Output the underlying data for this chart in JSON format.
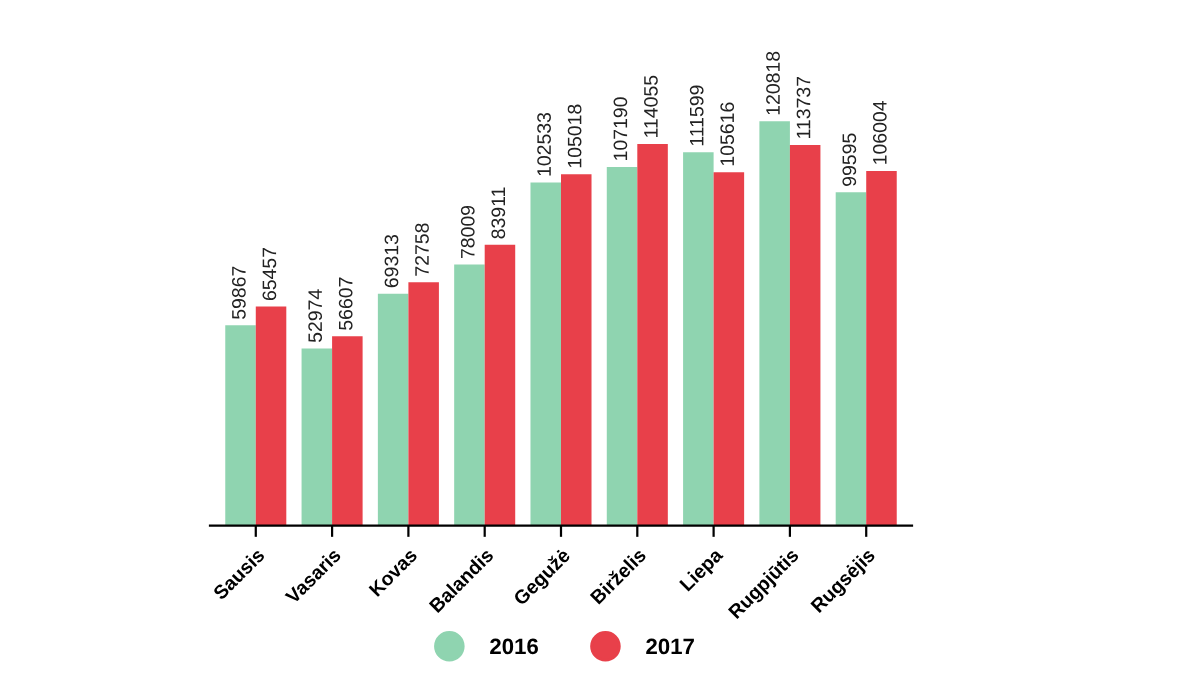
{
  "chart_data": {
    "type": "bar",
    "categories": [
      "Sausis",
      "Vasaris",
      "Kovas",
      "Balandis",
      "Gegužė",
      "Birželis",
      "Liepa",
      "Rugpjūtis",
      "Rugsėjis"
    ],
    "series": [
      {
        "name": "2016",
        "color": "#8fd4b0",
        "values": [
          59867,
          52974,
          69313,
          78009,
          102533,
          107190,
          111599,
          120818,
          99595
        ]
      },
      {
        "name": "2017",
        "color": "#e8404a",
        "values": [
          65457,
          56607,
          72758,
          83911,
          105018,
          114055,
          105616,
          113737,
          106004
        ]
      }
    ],
    "data_labels": true,
    "legend": "bottom",
    "grid": false
  }
}
